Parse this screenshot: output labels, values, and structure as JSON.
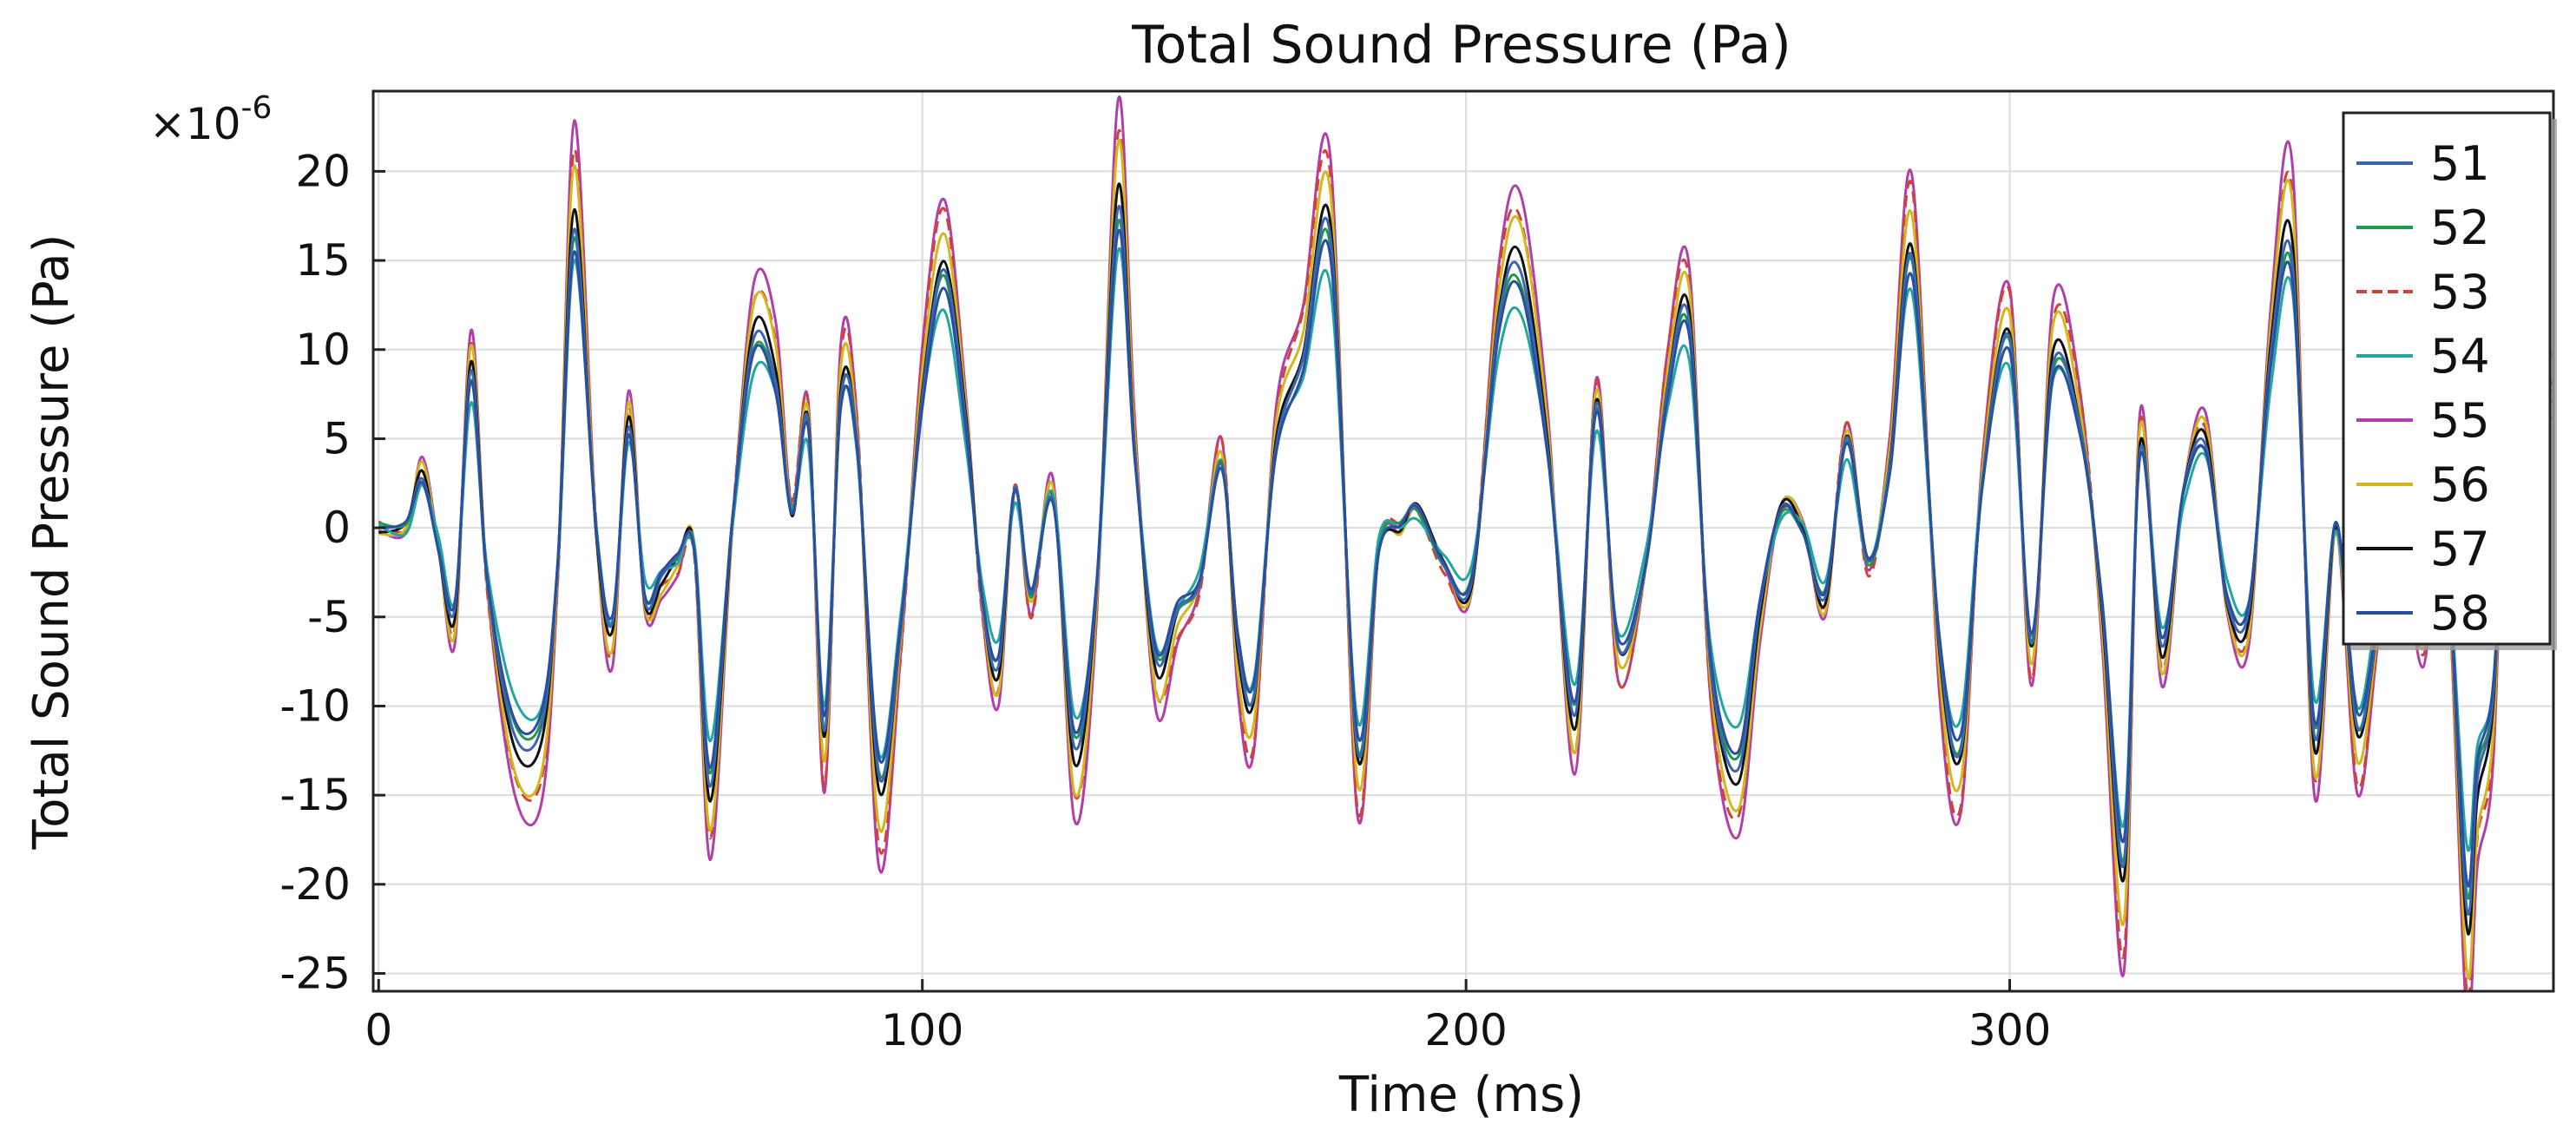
{
  "chart_data": {
    "type": "line",
    "title": "Total Sound Pressure (Pa)",
    "xlabel": "Time (ms)",
    "ylabel": "Total Sound Pressure (Pa)",
    "y_multiplier_label": "×10",
    "y_multiplier_exponent": "-6",
    "xlim": [
      -1,
      400
    ],
    "ylim": [
      -26,
      24.5
    ],
    "xticks": [
      0,
      100,
      200,
      300
    ],
    "yticks": [
      -25,
      -20,
      -15,
      -10,
      -5,
      0,
      5,
      10,
      15,
      20
    ],
    "grid": true,
    "legend_position": "top-right",
    "x": [
      0,
      5,
      8,
      11,
      14,
      17,
      20,
      25,
      30,
      33,
      36,
      40,
      43,
      46,
      49,
      52,
      55,
      58,
      61,
      65,
      69,
      73,
      76,
      79,
      82,
      85,
      88,
      92,
      96,
      100,
      104,
      108,
      111,
      114,
      117,
      120,
      124,
      128,
      132,
      136,
      139,
      143,
      147,
      151,
      155,
      158,
      161,
      165,
      170,
      175,
      180,
      184,
      188,
      191,
      196,
      201,
      206,
      210,
      215,
      220,
      224,
      228,
      233,
      237,
      241,
      245,
      250,
      254,
      258,
      262,
      266,
      270,
      274,
      278,
      282,
      287,
      291,
      295,
      300,
      304,
      308,
      313,
      317,
      321,
      324,
      328,
      332,
      336,
      340,
      344,
      348,
      352,
      356,
      360,
      364,
      368,
      372,
      376,
      380,
      384,
      386,
      389,
      392,
      395,
      398,
      400
    ],
    "base_values": [
      0,
      0,
      3,
      -1,
      -5,
      9,
      -3,
      -12,
      -12,
      -2,
      18,
      0,
      -6,
      6,
      -4,
      -3,
      -2,
      -1,
      -15,
      0,
      11,
      9,
      1,
      6,
      -12,
      8,
      5,
      -15,
      -6,
      8,
      15,
      6,
      -4,
      -8,
      2,
      -4,
      2,
      -13,
      -4,
      19,
      5,
      -8,
      -5,
      -3,
      4,
      -7,
      -10,
      5,
      10,
      17,
      -13,
      -1,
      0,
      1,
      -2,
      -3,
      12,
      15,
      5,
      -11,
      7,
      -7,
      -2,
      8,
      12,
      -8,
      -14,
      -5,
      1,
      0,
      -4,
      5,
      -2,
      4,
      16,
      -7,
      -13,
      3,
      11,
      -7,
      10,
      6,
      -5,
      -20,
      5,
      -7,
      2,
      5,
      -4,
      -5,
      10,
      16,
      -12,
      0,
      -12,
      -5,
      -1,
      -6,
      0,
      -22,
      -15,
      -10,
      10,
      5,
      7,
      8
    ],
    "series": [
      {
        "name": "51",
        "color": "#3d64b0",
        "amplitude": 0.95,
        "dashed": false
      },
      {
        "name": "52",
        "color": "#1f9a4b",
        "amplitude": 0.92,
        "dashed": false
      },
      {
        "name": "53",
        "color": "#d0433a",
        "amplitude": 1.18,
        "dashed": true
      },
      {
        "name": "54",
        "color": "#22a6a0",
        "amplitude": 0.82,
        "dashed": false
      },
      {
        "name": "55",
        "color": "#b23fa8",
        "amplitude": 1.25,
        "dashed": false
      },
      {
        "name": "56",
        "color": "#d4b61d",
        "amplitude": 1.12,
        "dashed": false
      },
      {
        "name": "57",
        "color": "#111111",
        "amplitude": 1.0,
        "dashed": false
      },
      {
        "name": "58",
        "color": "#2b4fa0",
        "amplitude": 0.88,
        "dashed": false
      }
    ]
  }
}
